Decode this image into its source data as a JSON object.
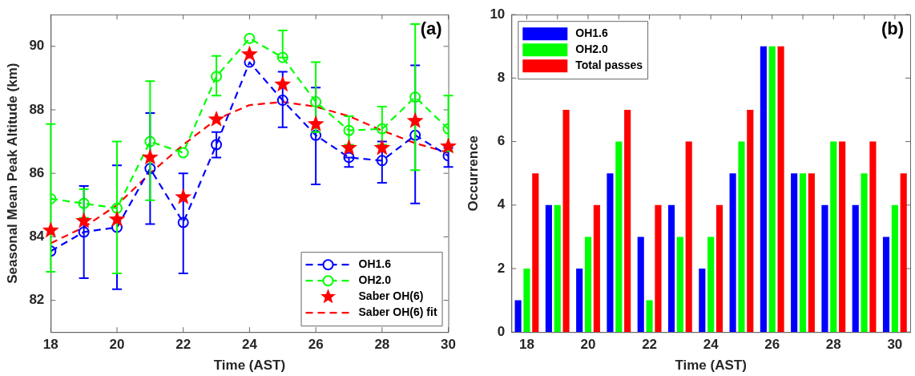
{
  "chart_data": [
    {
      "type": "line",
      "xlabel": "Time (AST)",
      "ylabel": "Seasonal Mean Peak Altitude (km)",
      "x": [
        18,
        19,
        20,
        21,
        22,
        23,
        24,
        25,
        26,
        27,
        28,
        29,
        30
      ],
      "xlim": [
        18,
        30
      ],
      "xticks": [
        18,
        20,
        22,
        24,
        26,
        28,
        30
      ],
      "ylim": [
        81,
        91
      ],
      "yticks": [
        82,
        84,
        86,
        88,
        90
      ],
      "grid": false,
      "legend": "bottom right",
      "annotations": [
        "(a)"
      ],
      "series": [
        {
          "name": "OH1.6",
          "type": "line",
          "color": "#0000ff",
          "marker": "circle",
          "line_style": "dashed",
          "values": [
            83.55,
            84.15,
            84.3,
            86.15,
            84.45,
            86.9,
            89.5,
            88.3,
            87.2,
            86.5,
            86.4,
            87.2,
            86.55
          ],
          "errors": [
            null,
            [
              82.7,
              85.6
            ],
            [
              82.35,
              86.25
            ],
            [
              84.4,
              87.9
            ],
            [
              82.85,
              86.0
            ],
            [
              86.5,
              87.3
            ],
            null,
            [
              87.45,
              89.2
            ],
            [
              85.65,
              88.7
            ],
            [
              86.2,
              86.5
            ],
            [
              85.7,
              87.0
            ],
            [
              85.05,
              89.4
            ],
            [
              86.2,
              86.8
            ]
          ]
        },
        {
          "name": "OH2.0",
          "type": "line",
          "color": "#00ff00",
          "marker": "circle",
          "line_style": "dashed",
          "values": [
            85.2,
            85.05,
            84.9,
            87.0,
            86.65,
            89.05,
            90.25,
            89.65,
            88.25,
            87.35,
            87.4,
            88.4,
            87.4
          ],
          "errors": [
            [
              82.9,
              87.55
            ],
            [
              84.6,
              85.5
            ],
            [
              82.85,
              87.0
            ],
            [
              85.15,
              88.9
            ],
            null,
            [
              88.45,
              89.7
            ],
            null,
            [
              89.65,
              90.5
            ],
            [
              87.3,
              89.5
            ],
            [
              86.9,
              87.8
            ],
            [
              86.9,
              88.1
            ],
            [
              86.1,
              90.7
            ],
            [
              86.7,
              88.45
            ]
          ]
        },
        {
          "name": "Saber OH(6)",
          "type": "scatter",
          "color": "#ff0000",
          "marker": "star",
          "values": [
            84.2,
            84.5,
            84.55,
            86.5,
            85.25,
            87.7,
            89.75,
            88.8,
            87.55,
            86.8,
            86.8,
            87.65,
            86.85
          ]
        },
        {
          "name": "Saber OH(6) fit",
          "type": "line",
          "color": "#ff0000",
          "marker": "none",
          "line_style": "dashed",
          "values": [
            83.8,
            84.3,
            85.0,
            86.0,
            86.9,
            87.7,
            88.15,
            88.25,
            88.1,
            87.8,
            87.35,
            86.95,
            86.65
          ]
        }
      ]
    },
    {
      "type": "bar",
      "xlabel": "Time (AST)",
      "ylabel": "Occurrence",
      "categories": [
        "18",
        null,
        "20",
        null,
        "22",
        null,
        "24",
        null,
        "26",
        null,
        "28",
        null,
        "30"
      ],
      "ylim": [
        0,
        10
      ],
      "yticks": [
        0,
        2,
        4,
        6,
        8,
        10
      ],
      "grid": false,
      "legend": "top left",
      "annotations": [
        "(b)"
      ],
      "series": [
        {
          "name": "OH1.6",
          "color": "#0000ff",
          "values": [
            1,
            4,
            2,
            5,
            3,
            4,
            2,
            5,
            9,
            5,
            4,
            4,
            3
          ]
        },
        {
          "name": "OH2.0",
          "color": "#00ff00",
          "values": [
            2,
            4,
            3,
            6,
            1,
            3,
            3,
            6,
            9,
            5,
            6,
            5,
            4
          ]
        },
        {
          "name": "Total passes",
          "color": "#ff0000",
          "values": [
            5,
            7,
            4,
            7,
            4,
            6,
            4,
            7,
            9,
            5,
            6,
            6,
            5
          ]
        }
      ]
    }
  ]
}
